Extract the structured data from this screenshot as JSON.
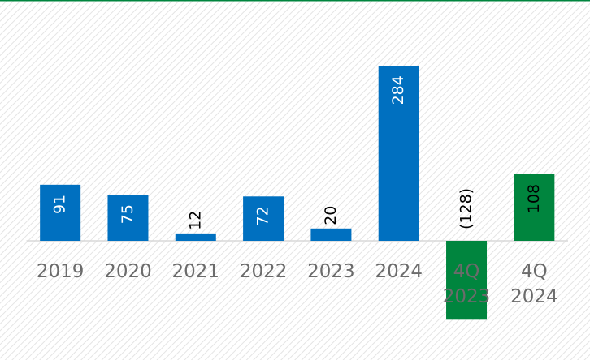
{
  "chart_data": {
    "type": "bar",
    "categories": [
      "2019",
      "2020",
      "2021",
      "2022",
      "2023",
      "2024",
      "4Q 2023",
      "4Q 2024"
    ],
    "values": [
      91,
      75,
      12,
      72,
      20,
      284,
      -128,
      108
    ],
    "value_labels": [
      "91",
      "75",
      "12",
      "72",
      "20",
      "284",
      "(128)",
      "108"
    ],
    "colors": [
      "#0070c0",
      "#0070c0",
      "#0070c0",
      "#0070c0",
      "#0070c0",
      "#0070c0",
      "#00853e",
      "#00853e"
    ]
  }
}
